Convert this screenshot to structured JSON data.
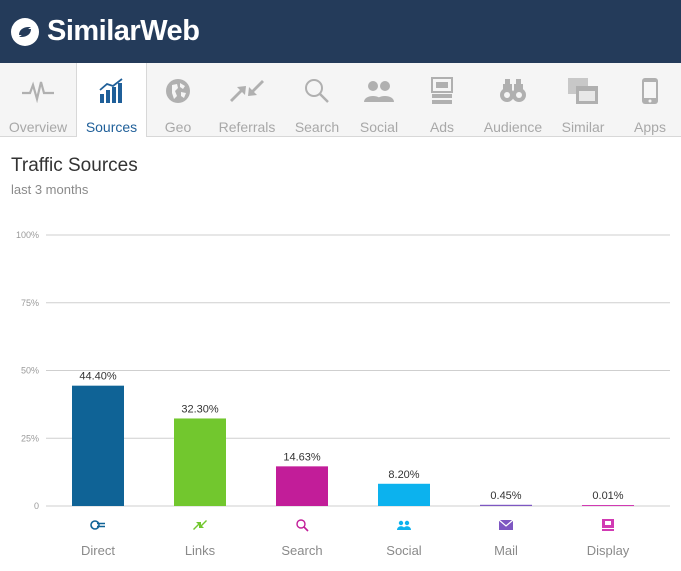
{
  "brand": {
    "name": "SimilarWeb",
    "color": "#243b5a"
  },
  "nav": {
    "active_color": "#1f5f99",
    "items": [
      {
        "label": "Overview",
        "icon": "pulse-icon",
        "active": false
      },
      {
        "label": "Sources",
        "icon": "bar-chart-icon",
        "active": true
      },
      {
        "label": "Geo",
        "icon": "globe-icon",
        "active": false
      },
      {
        "label": "Referrals",
        "icon": "referral-arrows-icon",
        "active": false
      },
      {
        "label": "Search",
        "icon": "magnifier-icon",
        "active": false
      },
      {
        "label": "Social",
        "icon": "people-icon",
        "active": false
      },
      {
        "label": "Ads",
        "icon": "ads-icon",
        "active": false
      },
      {
        "label": "Audience",
        "icon": "binoculars-icon",
        "active": false
      },
      {
        "label": "Similar",
        "icon": "similar-windows-icon",
        "active": false
      },
      {
        "label": "Apps",
        "icon": "phone-icon",
        "active": false
      }
    ]
  },
  "section": {
    "title": "Traffic Sources",
    "subtitle": "last 3 months"
  },
  "chart_data": {
    "type": "bar",
    "categories": [
      "Direct",
      "Links",
      "Search",
      "Social",
      "Mail",
      "Display"
    ],
    "values": [
      44.4,
      32.3,
      14.63,
      8.2,
      0.45,
      0.01
    ],
    "value_labels": [
      "44.40%",
      "32.30%",
      "14.63%",
      "8.20%",
      "0.45%",
      "0.01%"
    ],
    "colors": [
      "#0f6396",
      "#72c72e",
      "#c21d99",
      "#0cb2ee",
      "#7e57c2",
      "#d13ab3"
    ],
    "icons": [
      "direct-icon",
      "links-icon",
      "search-icon",
      "social-icon",
      "mail-icon",
      "display-icon"
    ],
    "yticks": [
      0,
      25,
      50,
      75,
      100
    ],
    "ytick_labels": [
      "0",
      "25%",
      "50%",
      "75%",
      "100%"
    ],
    "ylim": [
      0,
      100
    ],
    "grid": true
  }
}
